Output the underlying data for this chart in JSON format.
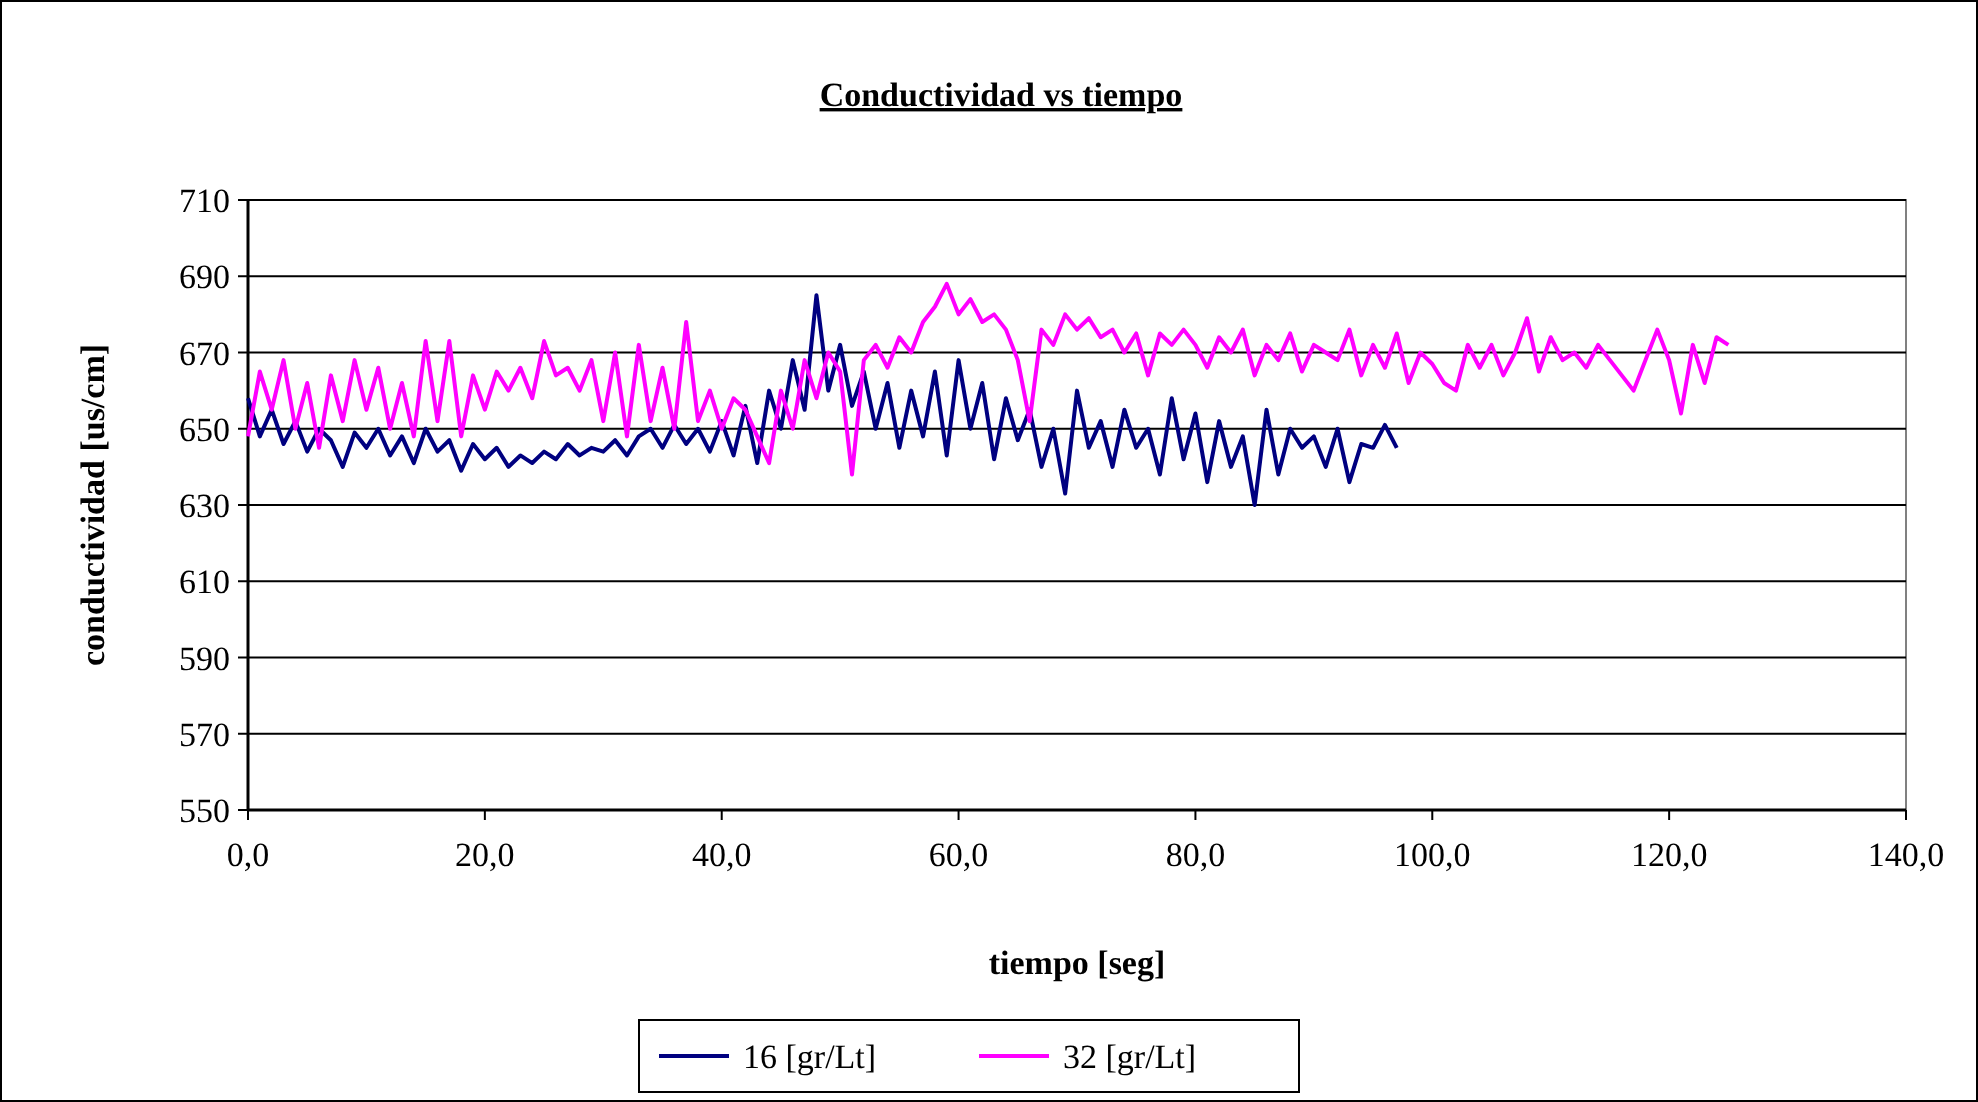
{
  "chart_data": {
    "type": "line",
    "title": "Conductividad vs tiempo",
    "xlabel": "tiempo [seg]",
    "ylabel": "conductividad [us/cm]",
    "xlim": [
      0,
      140
    ],
    "xticks": [
      {
        "value": 0,
        "label": "0,0"
      },
      {
        "value": 20,
        "label": "20,0"
      },
      {
        "value": 40,
        "label": "40,0"
      },
      {
        "value": 60,
        "label": "60,0"
      },
      {
        "value": 80,
        "label": "80,0"
      },
      {
        "value": 100,
        "label": "100,0"
      },
      {
        "value": 120,
        "label": "120,0"
      },
      {
        "value": 140,
        "label": "140,0"
      }
    ],
    "ylim": [
      550,
      710
    ],
    "yticks": [
      550,
      570,
      590,
      610,
      630,
      650,
      670,
      690,
      710
    ],
    "grid": "y",
    "legend": "bottom",
    "line_style": "solid",
    "series": [
      {
        "name": "16 [gr/Lt]",
        "color": "#000080",
        "x": [
          0,
          1,
          2,
          3,
          4,
          5,
          6,
          7,
          8,
          9,
          10,
          11,
          12,
          13,
          14,
          15,
          16,
          17,
          18,
          19,
          20,
          21,
          22,
          23,
          24,
          25,
          26,
          27,
          28,
          29,
          30,
          31,
          32,
          33,
          34,
          35,
          36,
          37,
          38,
          39,
          40,
          41,
          42,
          43,
          44,
          45,
          46,
          47,
          48,
          49,
          50,
          51,
          52,
          53,
          54,
          55,
          56,
          57,
          58,
          59,
          60,
          61,
          62,
          63,
          64,
          65,
          66,
          67,
          68,
          69,
          70,
          71,
          72,
          73,
          74,
          75,
          76,
          77,
          78,
          79,
          80,
          81,
          82,
          83,
          84,
          85,
          86,
          87,
          88,
          89,
          90,
          91,
          92,
          93,
          94,
          95,
          96,
          97
        ],
        "values": [
          658,
          648,
          655,
          646,
          652,
          644,
          650,
          647,
          640,
          649,
          645,
          650,
          643,
          648,
          641,
          650,
          644,
          647,
          639,
          646,
          642,
          645,
          640,
          643,
          641,
          644,
          642,
          646,
          643,
          645,
          644,
          647,
          643,
          648,
          650,
          645,
          651,
          646,
          650,
          644,
          652,
          643,
          656,
          641,
          660,
          650,
          668,
          655,
          685,
          660,
          672,
          656,
          665,
          650,
          662,
          645,
          660,
          648,
          665,
          643,
          668,
          650,
          662,
          642,
          658,
          647,
          655,
          640,
          650,
          633,
          660,
          645,
          652,
          640,
          655,
          645,
          650,
          638,
          658,
          642,
          654,
          636,
          652,
          640,
          648,
          630,
          655,
          638,
          650,
          645,
          648,
          640,
          650,
          636,
          646,
          645,
          651,
          645
        ]
      },
      {
        "name": "32 [gr/Lt]",
        "color": "#ff00ff",
        "x": [
          0,
          1,
          2,
          3,
          4,
          5,
          6,
          7,
          8,
          9,
          10,
          11,
          12,
          13,
          14,
          15,
          16,
          17,
          18,
          19,
          20,
          21,
          22,
          23,
          24,
          25,
          26,
          27,
          28,
          29,
          30,
          31,
          32,
          33,
          34,
          35,
          36,
          37,
          38,
          39,
          40,
          41,
          42,
          43,
          44,
          45,
          46,
          47,
          48,
          49,
          50,
          51,
          52,
          53,
          54,
          55,
          56,
          57,
          58,
          59,
          60,
          61,
          62,
          63,
          64,
          65,
          66,
          67,
          68,
          69,
          70,
          71,
          72,
          73,
          74,
          75,
          76,
          77,
          78,
          79,
          80,
          81,
          82,
          83,
          84,
          85,
          86,
          87,
          88,
          89,
          90,
          91,
          92,
          93,
          94,
          95,
          96,
          97,
          98,
          99,
          100,
          101,
          102,
          103,
          104,
          105,
          106,
          107,
          108,
          109,
          110,
          111,
          112,
          113,
          114,
          115,
          116,
          117,
          118,
          119,
          120,
          121,
          122,
          123,
          124,
          125
        ],
        "values": [
          648,
          665,
          655,
          668,
          650,
          662,
          645,
          664,
          652,
          668,
          655,
          666,
          650,
          662,
          648,
          673,
          652,
          673,
          648,
          664,
          655,
          665,
          660,
          666,
          658,
          673,
          664,
          666,
          660,
          668,
          652,
          670,
          648,
          672,
          652,
          666,
          650,
          678,
          652,
          660,
          650,
          658,
          655,
          648,
          641,
          660,
          650,
          668,
          658,
          670,
          665,
          638,
          668,
          672,
          666,
          674,
          670,
          678,
          682,
          688,
          680,
          684,
          678,
          680,
          676,
          668,
          652,
          676,
          672,
          680,
          676,
          679,
          674,
          676,
          670,
          675,
          664,
          675,
          672,
          676,
          672,
          666,
          674,
          670,
          676,
          664,
          672,
          668,
          675,
          665,
          672,
          670,
          668,
          676,
          664,
          672,
          666,
          675,
          662,
          670,
          667,
          662,
          660,
          672,
          666,
          672,
          664,
          670,
          679,
          665,
          674,
          668,
          670,
          666,
          672,
          668,
          664,
          660,
          668,
          676,
          668,
          654,
          672,
          662,
          674,
          672
        ]
      }
    ]
  }
}
